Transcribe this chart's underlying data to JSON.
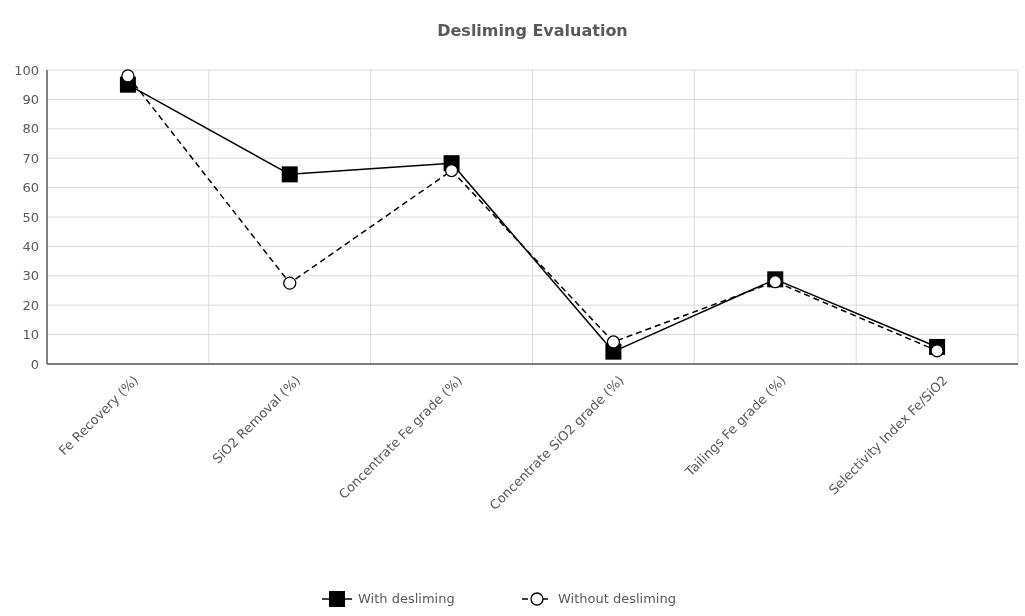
{
  "chart_data": {
    "type": "line",
    "title": "Desliming Evaluation",
    "categories": [
      "Fe Recovery (%)",
      "SiO2 Removal (%)",
      "Concentrate Fe grade (%)",
      "Concentrate SiO2 grade (%)",
      "Tailings Fe grade (%)",
      "Selectivity Index Fe/SiO2"
    ],
    "series": [
      {
        "name": "With desliming",
        "color": "#000000",
        "marker": "square",
        "line_style": "solid",
        "values": [
          95,
          64.5,
          68.3,
          4.2,
          28.8,
          5.8
        ]
      },
      {
        "name": "Without desliming",
        "color": "#000000",
        "marker": "circle",
        "line_style": "dashed",
        "values": [
          98,
          27.5,
          65.8,
          7.5,
          28,
          4.5
        ]
      }
    ],
    "ylim": [
      0,
      100
    ],
    "yticks": [
      0,
      10,
      20,
      30,
      40,
      50,
      60,
      70,
      80,
      90,
      100
    ],
    "grid": true,
    "legend": "bottom"
  }
}
